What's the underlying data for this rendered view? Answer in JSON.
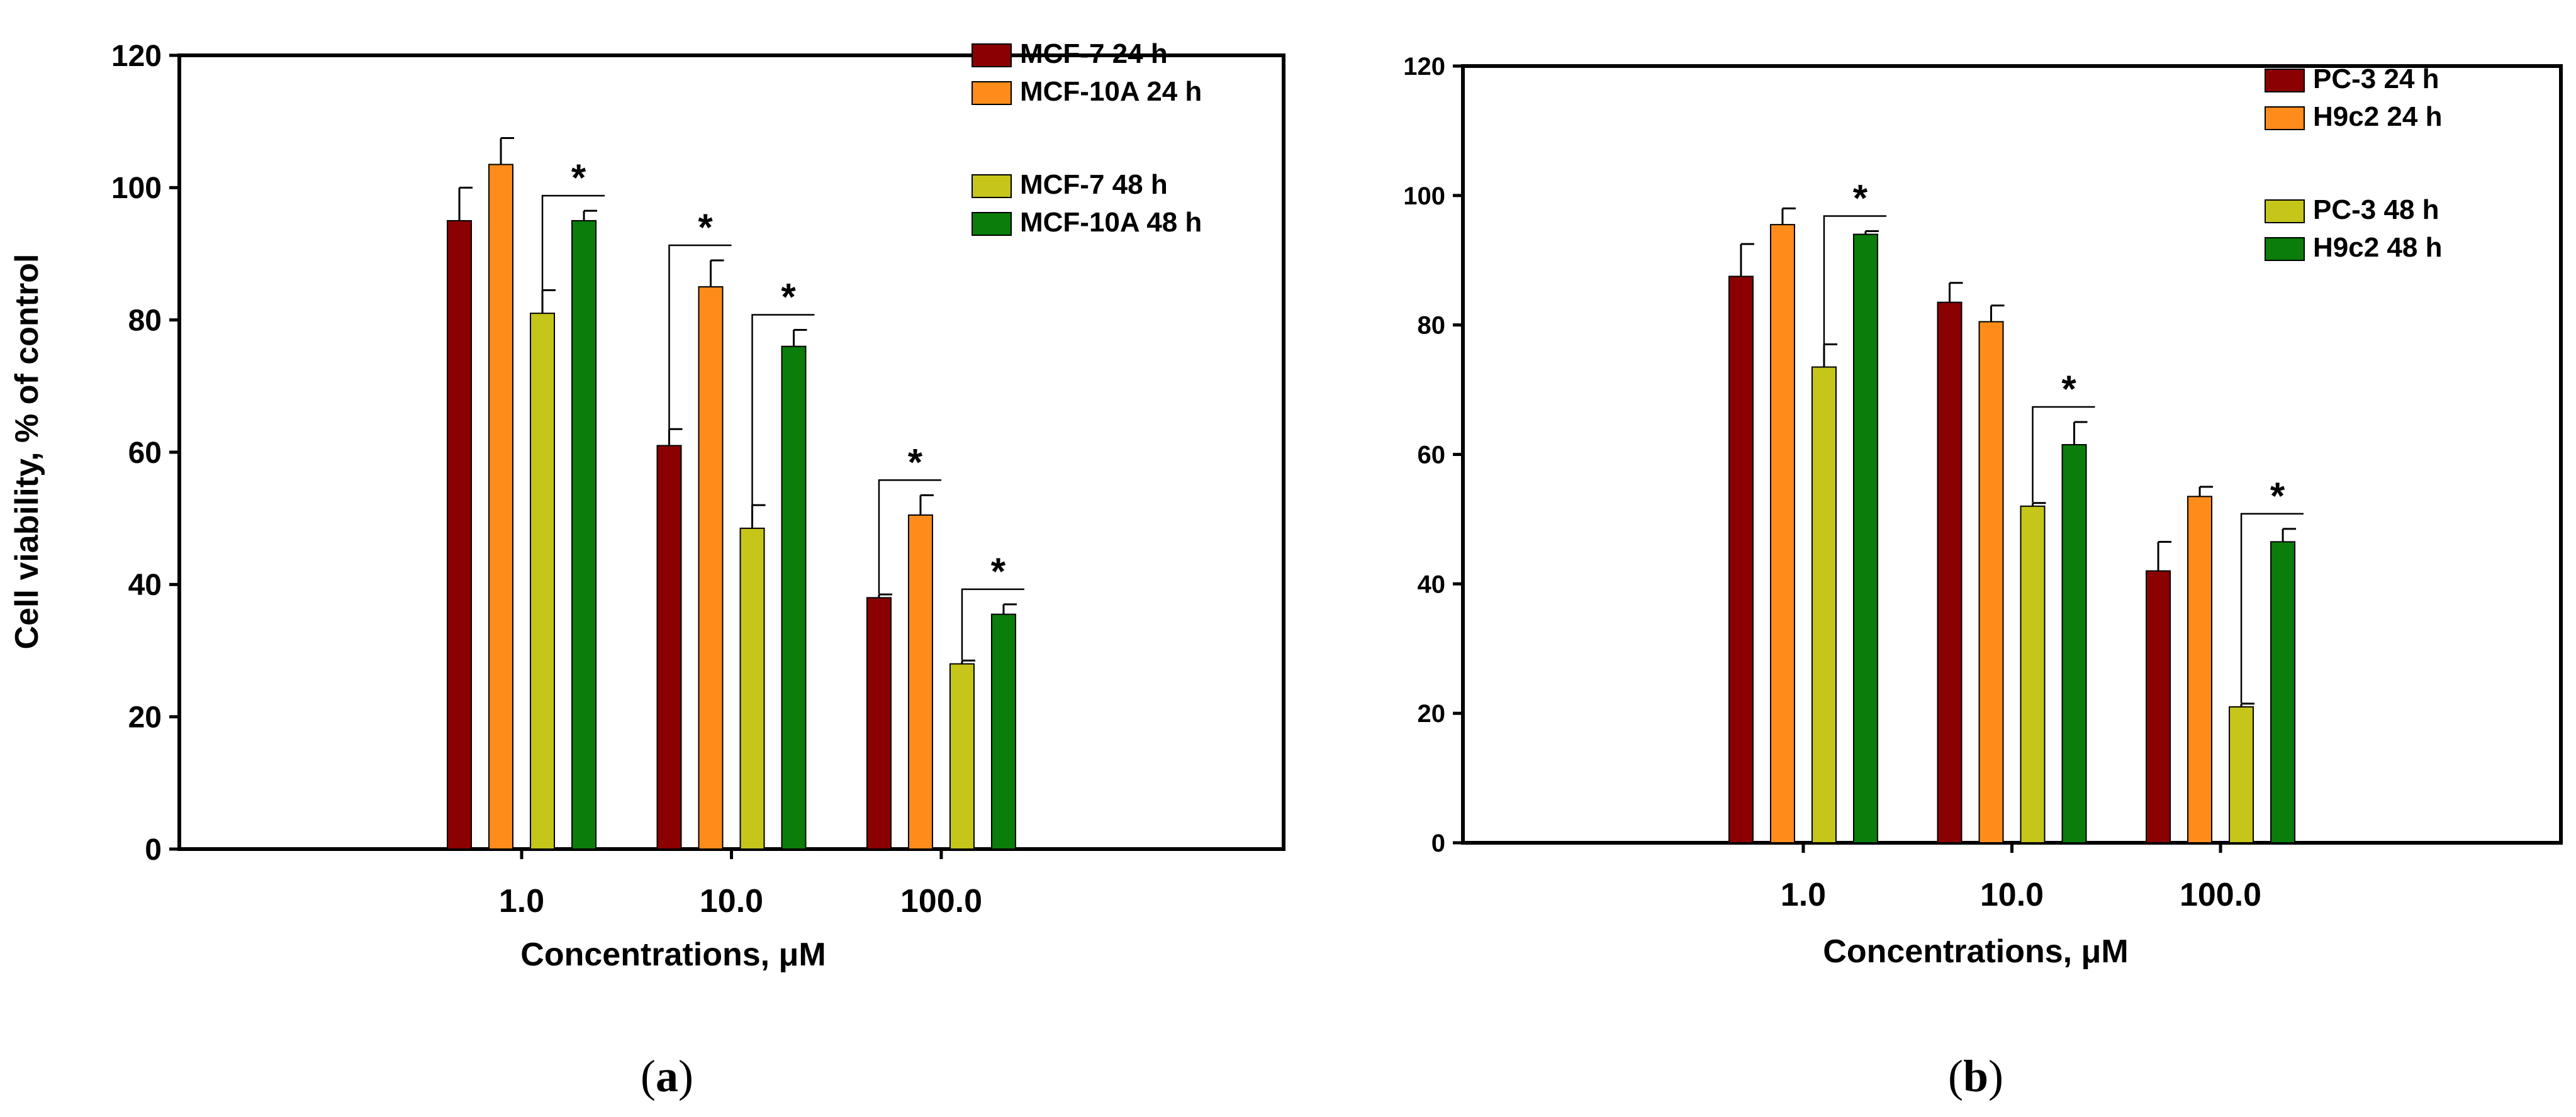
{
  "chart_data": [
    {
      "panel_label": "a",
      "type": "bar",
      "xlabel": "Concentrations, μM",
      "ylabel": "Cell viability, % of control",
      "ylim": [
        0,
        120
      ],
      "yticks": [
        0,
        20,
        40,
        60,
        80,
        100,
        120
      ],
      "categories": [
        "1.0",
        "10.0",
        "100.0"
      ],
      "legend_position": "top-right",
      "series": [
        {
          "name": "MCF-7 24 h",
          "color": "#8b0000",
          "values": [
            95,
            61,
            38
          ],
          "errors": [
            5,
            2.5,
            0.5
          ]
        },
        {
          "name": "MCF-10A 24 h",
          "color": "#ff8c1a",
          "values": [
            103.5,
            85,
            50.5
          ],
          "errors": [
            4,
            4,
            3
          ]
        },
        {
          "name": "MCF-7 48 h",
          "color": "#c5c51a",
          "values": [
            81,
            48.5,
            28
          ],
          "errors": [
            3.5,
            3.5,
            0.5
          ]
        },
        {
          "name": "MCF-10A 48 h",
          "color": "#0a7d0a",
          "values": [
            95,
            76,
            35.5
          ],
          "errors": [
            1.5,
            2.5,
            1.5
          ]
        }
      ],
      "significance": [
        {
          "category": "1.0",
          "from": "MCF-7 48 h",
          "to": "MCF-10A 48 h",
          "label": "*"
        },
        {
          "category": "10.0",
          "from": "MCF-7 24 h",
          "to": "MCF-10A 24 h",
          "label": "*"
        },
        {
          "category": "10.0",
          "from": "MCF-7 48 h",
          "to": "MCF-10A 48 h",
          "label": "*"
        },
        {
          "category": "100.0",
          "from": "MCF-7 24 h",
          "to": "MCF-10A 24 h",
          "label": "*"
        },
        {
          "category": "100.0",
          "from": "MCF-7 48 h",
          "to": "MCF-10A 48 h",
          "label": "*"
        }
      ]
    },
    {
      "panel_label": "b",
      "type": "bar",
      "xlabel": "Concentrations, μM",
      "ylabel": "",
      "ylim": [
        0,
        120
      ],
      "yticks": [
        0,
        20,
        40,
        60,
        80,
        100,
        120
      ],
      "categories": [
        "1.0",
        "10.0",
        "100.0"
      ],
      "legend_position": "top-right",
      "series": [
        {
          "name": "PC-3 24 h",
          "color": "#8b0000",
          "values": [
            87.5,
            83.5,
            42
          ],
          "errors": [
            5,
            3,
            4.5
          ]
        },
        {
          "name": "H9c2 24 h",
          "color": "#ff8c1a",
          "values": [
            95.5,
            80.5,
            53.5
          ],
          "errors": [
            2.5,
            2.5,
            1.5
          ]
        },
        {
          "name": "PC-3 48 h",
          "color": "#c5c51a",
          "values": [
            73.5,
            52,
            21
          ],
          "errors": [
            3.5,
            0.5,
            0.5
          ]
        },
        {
          "name": "H9c2 48 h",
          "color": "#0a7d0a",
          "values": [
            94,
            61.5,
            46.5
          ],
          "errors": [
            0.5,
            3.5,
            2
          ]
        }
      ],
      "significance": [
        {
          "category": "1.0",
          "from": "PC-3 48 h",
          "to": "H9c2 48 h",
          "label": "*"
        },
        {
          "category": "10.0",
          "from": "PC-3 48 h",
          "to": "H9c2 48 h",
          "label": "*"
        },
        {
          "category": "100.0",
          "from": "PC-3 48 h",
          "to": "H9c2 48 h",
          "label": "*"
        }
      ]
    }
  ]
}
